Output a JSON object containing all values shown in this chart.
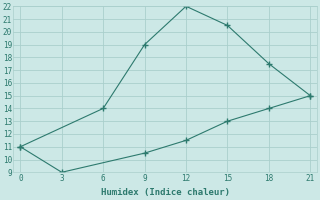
{
  "xlabel": "Humidex (Indice chaleur)",
  "line1_x": [
    0,
    6,
    9,
    12,
    15,
    18,
    21
  ],
  "line1_y": [
    11,
    14,
    19,
    22,
    20.5,
    17.5,
    15
  ],
  "line2_x": [
    0,
    3,
    9,
    12,
    15,
    18,
    21
  ],
  "line2_y": [
    11,
    9,
    10.5,
    11.5,
    13,
    14,
    15
  ],
  "line_color": "#2d7a6e",
  "bg_color": "#cce8e6",
  "grid_color": "#aacfcc",
  "xlim": [
    -0.5,
    21.5
  ],
  "ylim": [
    9,
    22
  ],
  "xticks": [
    0,
    3,
    6,
    9,
    12,
    15,
    18,
    21
  ],
  "yticks": [
    9,
    10,
    11,
    12,
    13,
    14,
    15,
    16,
    17,
    18,
    19,
    20,
    21,
    22
  ]
}
